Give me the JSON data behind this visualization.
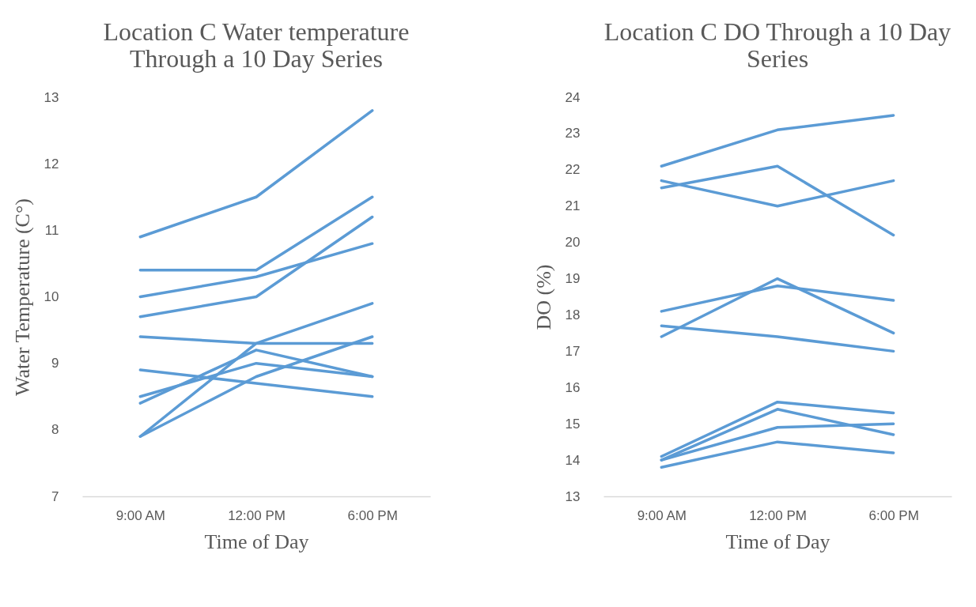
{
  "chart_data": [
    {
      "type": "line",
      "title": "Location C Water temperature Through a 10 Day Series",
      "xlabel": "Time of Day",
      "ylabel": "Water Temperature (C°)",
      "categories": [
        "9:00 AM",
        "12:00 PM",
        "6:00 PM"
      ],
      "ylim": [
        7,
        13
      ],
      "yticks": [
        7,
        8,
        9,
        10,
        11,
        12,
        13
      ],
      "grid": false,
      "legend": false,
      "series": [
        {
          "color": "#5b9bd5",
          "values": [
            10.9,
            11.5,
            12.8
          ]
        },
        {
          "color": "#5b9bd5",
          "values": [
            10.4,
            10.4,
            11.5
          ]
        },
        {
          "color": "#5b9bd5",
          "values": [
            10.0,
            10.3,
            10.8
          ]
        },
        {
          "color": "#5b9bd5",
          "values": [
            9.7,
            10.0,
            11.2
          ]
        },
        {
          "color": "#5b9bd5",
          "values": [
            9.4,
            9.3,
            9.3
          ]
        },
        {
          "color": "#5b9bd5",
          "values": [
            8.9,
            8.7,
            8.5
          ]
        },
        {
          "color": "#5b9bd5",
          "values": [
            8.5,
            9.0,
            8.8
          ]
        },
        {
          "color": "#5b9bd5",
          "values": [
            8.4,
            9.2,
            8.8
          ]
        },
        {
          "color": "#5b9bd5",
          "values": [
            7.9,
            9.3,
            9.9
          ]
        },
        {
          "color": "#5b9bd5",
          "values": [
            7.9,
            8.8,
            9.4
          ]
        }
      ]
    },
    {
      "type": "line",
      "title": "Location C DO Through a 10 Day Series",
      "xlabel": "Time of Day",
      "ylabel": "DO (%)",
      "categories": [
        "9:00 AM",
        "12:00 PM",
        "6:00 PM"
      ],
      "ylim": [
        13,
        24
      ],
      "yticks": [
        13,
        14,
        15,
        16,
        17,
        18,
        19,
        20,
        21,
        22,
        23,
        24
      ],
      "grid": false,
      "legend": false,
      "series": [
        {
          "color": "#5b9bd5",
          "values": [
            22.1,
            23.1,
            23.5
          ]
        },
        {
          "color": "#5b9bd5",
          "values": [
            21.5,
            22.1,
            20.2
          ]
        },
        {
          "color": "#5b9bd5",
          "values": [
            21.7,
            21.0,
            21.7
          ]
        },
        {
          "color": "#5b9bd5",
          "values": [
            18.1,
            18.8,
            18.4
          ]
        },
        {
          "color": "#5b9bd5",
          "values": [
            17.4,
            19.0,
            17.5
          ]
        },
        {
          "color": "#5b9bd5",
          "values": [
            17.7,
            17.4,
            17.0
          ]
        },
        {
          "color": "#5b9bd5",
          "values": [
            14.1,
            15.6,
            15.3
          ]
        },
        {
          "color": "#5b9bd5",
          "values": [
            14.0,
            15.4,
            14.7
          ]
        },
        {
          "color": "#5b9bd5",
          "values": [
            14.0,
            14.9,
            15.0
          ]
        },
        {
          "color": "#5b9bd5",
          "values": [
            13.8,
            14.5,
            14.2
          ]
        }
      ]
    }
  ]
}
